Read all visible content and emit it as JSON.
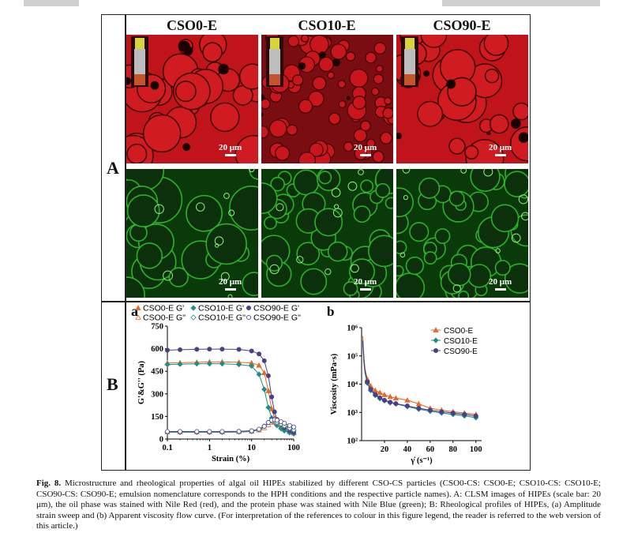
{
  "figure": {
    "panel_A_label": "A",
    "panel_B_label": "B",
    "columns": [
      "CSO0-E",
      "CSO10-E",
      "CSO90-E"
    ],
    "scale_bar_label": "20 μm",
    "stain_colors": {
      "nile_red": "#c0141a",
      "nile_blue": "#2fbf2a"
    },
    "subpanel_a_label": "a",
    "subpanel_b_label": "b"
  },
  "chart_data": [
    {
      "type": "line",
      "id": "a",
      "xlabel": "Strain (%)",
      "ylabel": "G'&G'' (Pa)",
      "x_scale": "log",
      "xlim": [
        0.1,
        100
      ],
      "ylim": [
        0,
        750
      ],
      "x_ticks": [
        "0.1",
        "1",
        "10",
        "100"
      ],
      "y_ticks": [
        "0",
        "150",
        "300",
        "450",
        "600",
        "750"
      ],
      "legend_rows": [
        [
          "CSO0-E G'",
          "CSO10-E G'",
          "CSO90-E G'"
        ],
        [
          "CSO0-E G''",
          "CSO10-E G''",
          "CSO90-E G''"
        ]
      ],
      "x": [
        0.1,
        0.2,
        0.5,
        1,
        2,
        5,
        10,
        15,
        20,
        25,
        30,
        35,
        40,
        50,
        60,
        80,
        100
      ],
      "series": [
        {
          "name": "CSO0-E G'",
          "color": "#e46a2a",
          "marker": "triangle",
          "values": [
            505,
            507,
            510,
            512,
            512,
            510,
            505,
            490,
            440,
            320,
            200,
            140,
            110,
            80,
            65,
            50,
            40
          ]
        },
        {
          "name": "CSO10-E G'",
          "color": "#1d8f8a",
          "marker": "diamond",
          "values": [
            495,
            497,
            500,
            500,
            500,
            495,
            485,
            430,
            330,
            210,
            140,
            110,
            90,
            70,
            55,
            42,
            35
          ]
        },
        {
          "name": "CSO90-E G'",
          "color": "#4a3f8a",
          "marker": "circle",
          "values": [
            590,
            593,
            596,
            597,
            597,
            595,
            585,
            565,
            520,
            420,
            280,
            180,
            130,
            95,
            75,
            55,
            45
          ]
        },
        {
          "name": "CSO0-E G''",
          "color": "#e46a2a",
          "marker": "triangle-open",
          "values": [
            48,
            48,
            48,
            48,
            48,
            49,
            52,
            60,
            75,
            95,
            110,
            115,
            110,
            100,
            90,
            75,
            65
          ]
        },
        {
          "name": "CSO10-E G''",
          "color": "#1d8f8a",
          "marker": "diamond-open",
          "values": [
            45,
            45,
            45,
            45,
            45,
            46,
            50,
            62,
            85,
            110,
            120,
            118,
            112,
            100,
            88,
            72,
            60
          ]
        },
        {
          "name": "CSO90-E G''",
          "color": "#4a3f8a",
          "marker": "circle-open",
          "values": [
            50,
            50,
            50,
            50,
            50,
            51,
            55,
            65,
            85,
            110,
            125,
            128,
            125,
            115,
            105,
            90,
            80
          ]
        }
      ]
    },
    {
      "type": "line",
      "id": "b",
      "xlabel": "γ̇ (s⁻¹)",
      "ylabel": "Viscosity (mPa·s)",
      "y_scale": "log",
      "xlim": [
        0,
        105
      ],
      "ylim": [
        100,
        1000000
      ],
      "x_ticks": [
        "20",
        "40",
        "60",
        "80",
        "100"
      ],
      "y_ticks": [
        "10²",
        "10³",
        "10⁴",
        "10⁵",
        "10⁶"
      ],
      "x": [
        1,
        2,
        3,
        5,
        8,
        12,
        16,
        20,
        25,
        30,
        40,
        50,
        60,
        70,
        80,
        90,
        100
      ],
      "series": [
        {
          "name": "CSO0-E",
          "color": "#e46a2a",
          "marker": "triangle",
          "values": [
            500000,
            90000,
            35000,
            15000,
            8500,
            6000,
            5000,
            4200,
            3600,
            3200,
            2700,
            2000,
            1400,
            1200,
            1050,
            950,
            850
          ]
        },
        {
          "name": "CSO10-E",
          "color": "#1d8f8a",
          "marker": "diamond",
          "values": [
            300000,
            60000,
            25000,
            11000,
            6000,
            4000,
            3100,
            2600,
            2200,
            2000,
            1600,
            1300,
            1100,
            950,
            850,
            750,
            650
          ]
        },
        {
          "name": "CSO90-E",
          "color": "#4a3f8a",
          "marker": "circle",
          "values": [
            350000,
            70000,
            28000,
            12000,
            6500,
            4300,
            3300,
            2700,
            2300,
            2050,
            1700,
            1400,
            1200,
            1050,
            950,
            850,
            750
          ]
        }
      ]
    }
  ],
  "caption": {
    "label": "Fig. 8.",
    "text": "Microstructure and rheological properties of algal oil HIPEs stabilized by different CSO-CS particles (CSO0-CS: CSO0-E; CSO10-CS: CSO10-E; CSO90-CS: CSO90-E; emulsion nomenclature corresponds to the HPH conditions and the respective particle names). A: CLSM images of HIPEs (scale bar: 20 μm), the oil phase was stained with Nile Red (red), and the protein phase was stained with Nile Blue (green); B: Rheological profiles of HIPEs, (a) Amplitude strain sweep and (b) Apparent viscosity flow curve. (For interpretation of the references to colour in this figure legend, the reader is referred to the web version of this article.)"
  }
}
